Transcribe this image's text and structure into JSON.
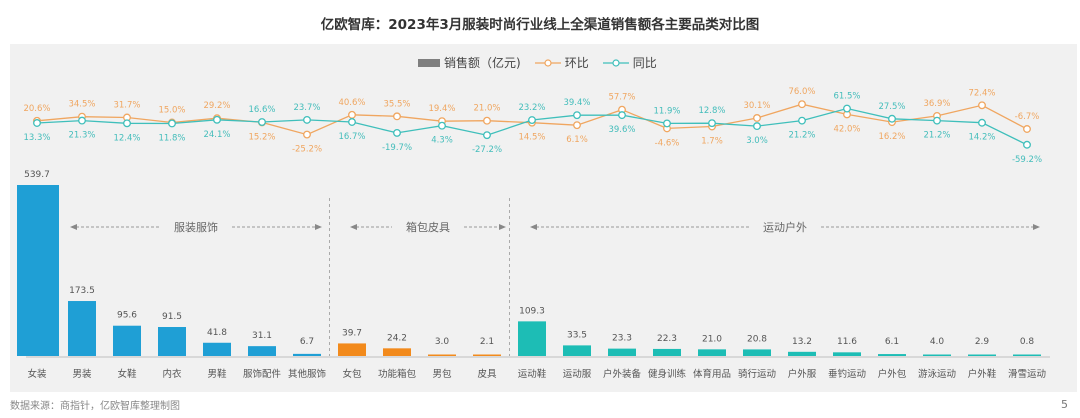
{
  "title": "亿欧智库：2023年3月服装时尚行业线上全渠道销售额各主要品类对比图",
  "source": "数据来源：商指针，亿欧智库整理制图",
  "page_number": "5",
  "legend": {
    "bar": "销售额（亿元)",
    "mom": "环比",
    "yoy": "同比"
  },
  "colors": {
    "apparel": "#1f9fd5",
    "bags": "#f28a1c",
    "sports": "#1dbdb5",
    "mom_line": "#f0a660",
    "yoy_line": "#3fbfbb",
    "mom_label": "#f0a660",
    "yoy_label": "#44bdbb"
  },
  "groups": [
    {
      "label": "服装服饰",
      "start": 0,
      "end": 6
    },
    {
      "label": "箱包皮具",
      "start": 7,
      "end": 10
    },
    {
      "label": "运动户外",
      "start": 11,
      "end": 22
    }
  ],
  "chart_data": {
    "type": "bar",
    "title": "亿欧智库：2023年3月服装时尚行业线上全渠道销售额各主要品类对比图",
    "xlabel": "",
    "ylabel": "销售额（亿元）",
    "categories": [
      "女装",
      "男装",
      "女鞋",
      "内衣",
      "男鞋",
      "服饰配件",
      "其他服饰",
      "女包",
      "功能箱包",
      "男包",
      "皮具",
      "运动鞋",
      "运动服",
      "户外装备",
      "健身训练",
      "体育用品",
      "骑行运动",
      "户外服",
      "垂钓运动",
      "户外包",
      "游泳运动",
      "户外鞋",
      "滑雪运动"
    ],
    "series": [
      {
        "name": "销售额（亿元)",
        "type": "bar",
        "values": [
          539.7,
          173.5,
          95.6,
          91.5,
          41.8,
          31.1,
          6.7,
          39.7,
          24.2,
          3.0,
          2.1,
          109.3,
          33.5,
          23.3,
          22.3,
          21.0,
          20.8,
          13.2,
          11.6,
          6.1,
          4.0,
          2.9,
          0.8
        ],
        "labels": [
          "539.7",
          "173.5",
          "95.6",
          "91.5",
          "41.8",
          "31.1",
          "6.7",
          "39.7",
          "24.2",
          "3.0",
          "2.1",
          "109.3",
          "33.5",
          "23.3",
          "22.3",
          "21.0",
          "20.8",
          "13.2",
          "11.6",
          "6.1",
          "4.0",
          "2.9",
          "0.8"
        ]
      },
      {
        "name": "环比",
        "type": "line",
        "unit": "%",
        "values": [
          20.6,
          34.5,
          31.7,
          15.0,
          29.2,
          15.2,
          -25.2,
          40.6,
          35.5,
          19.4,
          21.0,
          14.5,
          6.1,
          57.7,
          -4.6,
          1.7,
          30.1,
          76.0,
          42.0,
          16.2,
          36.9,
          72.4,
          -6.7
        ],
        "labels": [
          "20.6%",
          "34.5%",
          "31.7%",
          "15.0%",
          "29.2%",
          "15.2%",
          "-25.2%",
          "40.6%",
          "35.5%",
          "19.4%",
          "21.0%",
          "14.5%",
          "6.1%",
          "57.7%",
          "-4.6%",
          "1.7%",
          "30.1%",
          "76.0%",
          "42.0%",
          "16.2%",
          "36.9%",
          "72.4%",
          "-6.7%"
        ]
      },
      {
        "name": "同比",
        "type": "line",
        "unit": "%",
        "values": [
          13.3,
          21.3,
          12.4,
          11.8,
          24.1,
          16.6,
          23.7,
          16.7,
          -19.7,
          4.3,
          -27.2,
          23.2,
          39.4,
          39.6,
          11.9,
          12.8,
          3.0,
          21.2,
          61.5,
          27.5,
          21.2,
          14.2,
          -59.2
        ],
        "labels": [
          "13.3%",
          "21.3%",
          "12.4%",
          "11.8%",
          "24.1%",
          "16.6%",
          "23.7%",
          "16.7%",
          "-19.7%",
          "4.3%",
          "-27.2%",
          "23.2%",
          "39.4%",
          "39.6%",
          "11.9%",
          "12.8%",
          "3.0%",
          "21.2%",
          "61.5%",
          "27.5%",
          "21.2%",
          "14.2%",
          "-59.2%"
        ]
      }
    ],
    "label_positions": {
      "mom": [
        "above",
        "above",
        "above",
        "above",
        "above",
        "below",
        "below",
        "above",
        "above",
        "above",
        "above",
        "below",
        "below",
        "above",
        "below",
        "below",
        "above",
        "above",
        "below",
        "below",
        "above",
        "above",
        "above"
      ],
      "yoy": [
        "below",
        "below",
        "below",
        "below",
        "below",
        "above",
        "above",
        "below",
        "below",
        "below",
        "below",
        "above",
        "above",
        "below",
        "above",
        "above",
        "below",
        "below",
        "above",
        "above",
        "below",
        "below",
        "below"
      ]
    },
    "legend_position": "top-center",
    "grid": false
  }
}
